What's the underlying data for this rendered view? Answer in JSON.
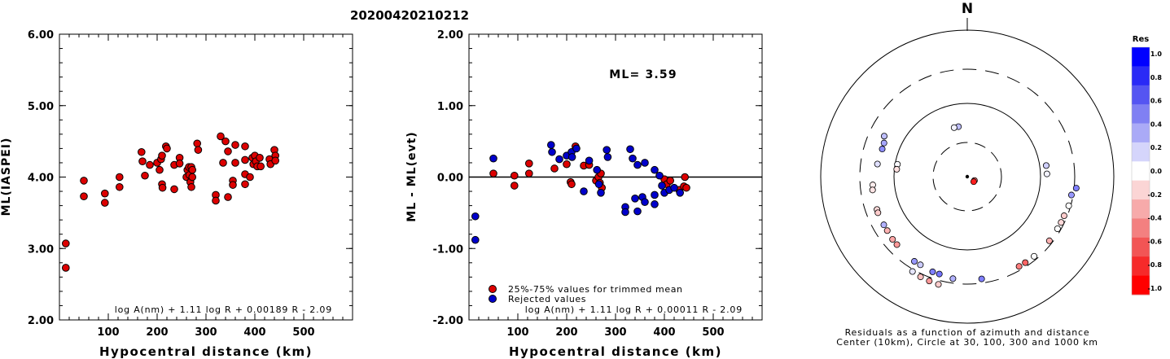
{
  "figure_title": "20200420210212",
  "chart_data": [
    {
      "type": "scatter",
      "xlabel": "Hypocentral distance (km)",
      "ylabel": "ML(IASPEI)",
      "xlim": [
        0,
        600
      ],
      "ylim": [
        2.0,
        6.0
      ],
      "xticks": [
        "100",
        "200",
        "300",
        "400",
        "500"
      ],
      "yticks": [
        "2.00",
        "3.00",
        "4.00",
        "5.00",
        "6.00"
      ],
      "formula": "log A(nm) + 1.11 log R + 0.00189 R - 2.09",
      "marker_color": "#dd0000",
      "points": [
        [
          13,
          3.07
        ],
        [
          13,
          2.73
        ],
        [
          50,
          3.95
        ],
        [
          50,
          3.73
        ],
        [
          93,
          3.77
        ],
        [
          93,
          3.64
        ],
        [
          123,
          4.0
        ],
        [
          123,
          3.86
        ],
        [
          168,
          4.35
        ],
        [
          170,
          4.22
        ],
        [
          175,
          4.02
        ],
        [
          185,
          4.17
        ],
        [
          200,
          4.2
        ],
        [
          205,
          4.1
        ],
        [
          208,
          4.25
        ],
        [
          210,
          4.3
        ],
        [
          210,
          3.9
        ],
        [
          211,
          3.85
        ],
        [
          218,
          4.43
        ],
        [
          220,
          4.4
        ],
        [
          235,
          4.17
        ],
        [
          235,
          3.83
        ],
        [
          246,
          4.27
        ],
        [
          246,
          4.19
        ],
        [
          260,
          4.0
        ],
        [
          262,
          4.1
        ],
        [
          265,
          4.14
        ],
        [
          266,
          4.03
        ],
        [
          268,
          3.93
        ],
        [
          270,
          4.14
        ],
        [
          270,
          3.86
        ],
        [
          272,
          4.0
        ],
        [
          272,
          4.1
        ],
        [
          282,
          4.47
        ],
        [
          284,
          4.38
        ],
        [
          320,
          3.75
        ],
        [
          320,
          3.67
        ],
        [
          330,
          4.57
        ],
        [
          335,
          4.2
        ],
        [
          340,
          4.5
        ],
        [
          345,
          4.36
        ],
        [
          345,
          3.72
        ],
        [
          355,
          3.95
        ],
        [
          355,
          3.89
        ],
        [
          360,
          4.45
        ],
        [
          360,
          4.2
        ],
        [
          380,
          4.43
        ],
        [
          380,
          4.24
        ],
        [
          380,
          4.04
        ],
        [
          380,
          3.9
        ],
        [
          390,
          4.0
        ],
        [
          395,
          4.27
        ],
        [
          397,
          4.18
        ],
        [
          400,
          4.3
        ],
        [
          402,
          4.22
        ],
        [
          405,
          4.15
        ],
        [
          410,
          4.27
        ],
        [
          412,
          4.15
        ],
        [
          430,
          4.25
        ],
        [
          432,
          4.18
        ],
        [
          440,
          4.38
        ],
        [
          442,
          4.3
        ],
        [
          442,
          4.23
        ]
      ]
    },
    {
      "type": "scatter",
      "xlabel": "Hypocentral distance (km)",
      "ylabel": "ML - ML(evt)",
      "xlim": [
        0,
        600
      ],
      "ylim": [
        -2.0,
        2.0
      ],
      "xticks": [
        "100",
        "200",
        "300",
        "400",
        "500"
      ],
      "yticks": [
        "-2.00",
        "-1.00",
        "0.00",
        "1.00",
        "2.00"
      ],
      "annotation": "ML=  3.59",
      "formula": "log A(nm) + 1.11 log R + 0.00011 R - 2.09",
      "legend": [
        {
          "label": "25%-75% values for trimmed mean",
          "color": "#dd0000"
        },
        {
          "label": "Rejected values",
          "color": "#0000cc"
        }
      ],
      "series": [
        {
          "name": "25%-75% values for trimmed mean",
          "color": "#dd0000",
          "points": [
            [
              50,
              0.05
            ],
            [
              93,
              0.02
            ],
            [
              93,
              -0.12
            ],
            [
              123,
              0.19
            ],
            [
              123,
              0.05
            ],
            [
              175,
              0.12
            ],
            [
              200,
              0.18
            ],
            [
              208,
              -0.07
            ],
            [
              210,
              -0.1
            ],
            [
              218,
              0.43
            ],
            [
              235,
              0.16
            ],
            [
              246,
              0.17
            ],
            [
              260,
              -0.05
            ],
            [
              265,
              0.0
            ],
            [
              268,
              -0.08
            ],
            [
              270,
              0.05
            ],
            [
              272,
              -0.15
            ],
            [
              400,
              -0.03
            ],
            [
              405,
              -0.1
            ],
            [
              412,
              -0.05
            ],
            [
              430,
              -0.18
            ],
            [
              440,
              -0.13
            ],
            [
              442,
              0.0
            ],
            [
              445,
              -0.15
            ]
          ]
        },
        {
          "name": "Rejected values",
          "color": "#0000cc",
          "points": [
            [
              13,
              -0.55
            ],
            [
              13,
              -0.88
            ],
            [
              50,
              0.26
            ],
            [
              168,
              0.45
            ],
            [
              170,
              0.35
            ],
            [
              185,
              0.25
            ],
            [
              200,
              0.3
            ],
            [
              210,
              0.35
            ],
            [
              211,
              0.28
            ],
            [
              220,
              0.4
            ],
            [
              235,
              -0.2
            ],
            [
              246,
              0.23
            ],
            [
              262,
              0.1
            ],
            [
              266,
              -0.1
            ],
            [
              270,
              -0.22
            ],
            [
              282,
              0.38
            ],
            [
              284,
              0.28
            ],
            [
              320,
              -0.42
            ],
            [
              320,
              -0.49
            ],
            [
              330,
              0.39
            ],
            [
              335,
              0.26
            ],
            [
              340,
              -0.3
            ],
            [
              345,
              0.17
            ],
            [
              345,
              -0.48
            ],
            [
              355,
              -0.28
            ],
            [
              360,
              -0.35
            ],
            [
              360,
              0.2
            ],
            [
              380,
              0.1
            ],
            [
              380,
              -0.38
            ],
            [
              380,
              -0.25
            ],
            [
              390,
              0.02
            ],
            [
              395,
              -0.12
            ],
            [
              400,
              -0.22
            ],
            [
              410,
              -0.18
            ],
            [
              420,
              -0.15
            ],
            [
              432,
              -0.22
            ]
          ]
        }
      ]
    },
    {
      "type": "polar-scatter",
      "north_label": "N",
      "caption_line1": "Residuals as a function of azimuth and distance",
      "caption_line2": "Center (10km), Circle at 30, 100, 300 and 1000 km",
      "circles_km": [
        30,
        100,
        300,
        1000
      ],
      "colorbar_title": "Res",
      "colorbar_ticks": [
        "1.0",
        "0.8",
        "0.6",
        "0.4",
        "0.2",
        "0.0",
        "-0.2",
        "-0.4",
        "-0.6",
        "-0.8",
        "-1.0"
      ],
      "colorbar_colors": [
        "#0000ff",
        "#2a2af6",
        "#5555f2",
        "#8080f3",
        "#aaaaf7",
        "#d5d5fb",
        "#ffffff",
        "#fbd5d5",
        "#f7aaaa",
        "#f38080",
        "#f25555",
        "#f62a2a",
        "#ff0000"
      ],
      "points": [
        {
          "dist_km": 13,
          "az": 118,
          "res": -0.55
        },
        {
          "dist_km": 13,
          "az": 128,
          "res": -0.88
        },
        {
          "dist_km": 50,
          "az": 350,
          "res": 0.26
        },
        {
          "dist_km": 50,
          "az": 345,
          "res": 0.05
        },
        {
          "dist_km": 93,
          "az": 280,
          "res": 0.02
        },
        {
          "dist_km": 93,
          "az": 276,
          "res": -0.12
        },
        {
          "dist_km": 123,
          "az": 82,
          "res": 0.19
        },
        {
          "dist_km": 123,
          "az": 88,
          "res": 0.05
        },
        {
          "dist_km": 168,
          "az": 288,
          "res": 0.45
        },
        {
          "dist_km": 170,
          "az": 292,
          "res": 0.35
        },
        {
          "dist_km": 175,
          "az": 278,
          "res": 0.12
        },
        {
          "dist_km": 185,
          "az": 296,
          "res": 0.25
        },
        {
          "dist_km": 200,
          "az": 265,
          "res": -0.07
        },
        {
          "dist_km": 205,
          "az": 262,
          "res": -0.1
        },
        {
          "dist_km": 208,
          "az": 250,
          "res": -0.15
        },
        {
          "dist_km": 210,
          "az": 248,
          "res": -0.2
        },
        {
          "dist_km": 210,
          "az": 240,
          "res": 0.3
        },
        {
          "dist_km": 211,
          "az": 236,
          "res": -0.3
        },
        {
          "dist_km": 218,
          "az": 230,
          "res": -0.35
        },
        {
          "dist_km": 220,
          "az": 226,
          "res": -0.4
        },
        {
          "dist_km": 235,
          "az": 212,
          "res": 0.4
        },
        {
          "dist_km": 235,
          "az": 208,
          "res": 0.2
        },
        {
          "dist_km": 246,
          "az": 200,
          "res": 0.5
        },
        {
          "dist_km": 246,
          "az": 196,
          "res": 0.55
        },
        {
          "dist_km": 260,
          "az": 188,
          "res": 0.3
        },
        {
          "dist_km": 262,
          "az": 172,
          "res": 0.5
        },
        {
          "dist_km": 265,
          "az": 150,
          "res": -0.5
        },
        {
          "dist_km": 266,
          "az": 146,
          "res": -0.6
        },
        {
          "dist_km": 268,
          "az": 140,
          "res": 0.0
        },
        {
          "dist_km": 270,
          "az": 128,
          "res": -0.3
        },
        {
          "dist_km": 270,
          "az": 120,
          "res": 0.0
        },
        {
          "dist_km": 272,
          "az": 116,
          "res": -0.15
        },
        {
          "dist_km": 272,
          "az": 112,
          "res": -0.2
        },
        {
          "dist_km": 282,
          "az": 106,
          "res": 0.0
        },
        {
          "dist_km": 284,
          "az": 100,
          "res": 0.4
        },
        {
          "dist_km": 320,
          "az": 96,
          "res": 0.5
        },
        {
          "dist_km": 320,
          "az": 210,
          "res": 0.1
        },
        {
          "dist_km": 330,
          "az": 205,
          "res": -0.25
        },
        {
          "dist_km": 335,
          "az": 200,
          "res": -0.4
        },
        {
          "dist_km": 340,
          "az": 195,
          "res": -0.2
        }
      ]
    }
  ]
}
